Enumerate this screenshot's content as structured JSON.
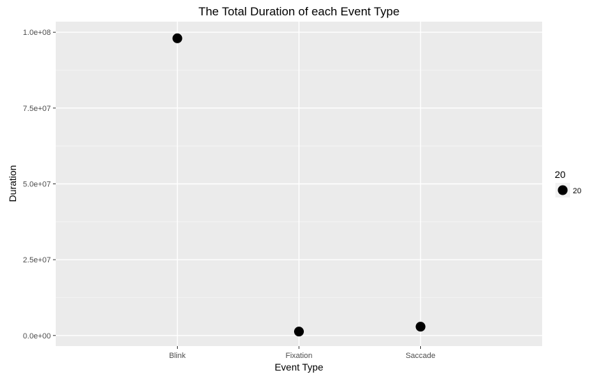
{
  "chart_data": {
    "type": "scatter",
    "title": "The Total Duration of each Event Type",
    "xlabel": "Event Type",
    "ylabel": "Duration",
    "categories": [
      "Blink",
      "Fixation",
      "Saccade"
    ],
    "values": [
      98000000,
      1300000,
      2900000
    ],
    "ylim": [
      -3500000,
      103500000
    ],
    "yticks": [
      0,
      25000000,
      50000000,
      75000000,
      100000000
    ],
    "ytick_labels": [
      "0.0e+00",
      "2.5e+07",
      "5.0e+07",
      "7.5e+07",
      "1.0e+08"
    ],
    "grid": true,
    "legend": {
      "title": "20",
      "placement": "right",
      "entries": [
        "20"
      ]
    },
    "colors": {
      "panel_background": "#ebebeb",
      "grid_major": "#ffffff",
      "grid_minor": "#f5f5f5",
      "point": "#000000",
      "tick_label": "#4d4d4d",
      "text": "#000000"
    }
  }
}
